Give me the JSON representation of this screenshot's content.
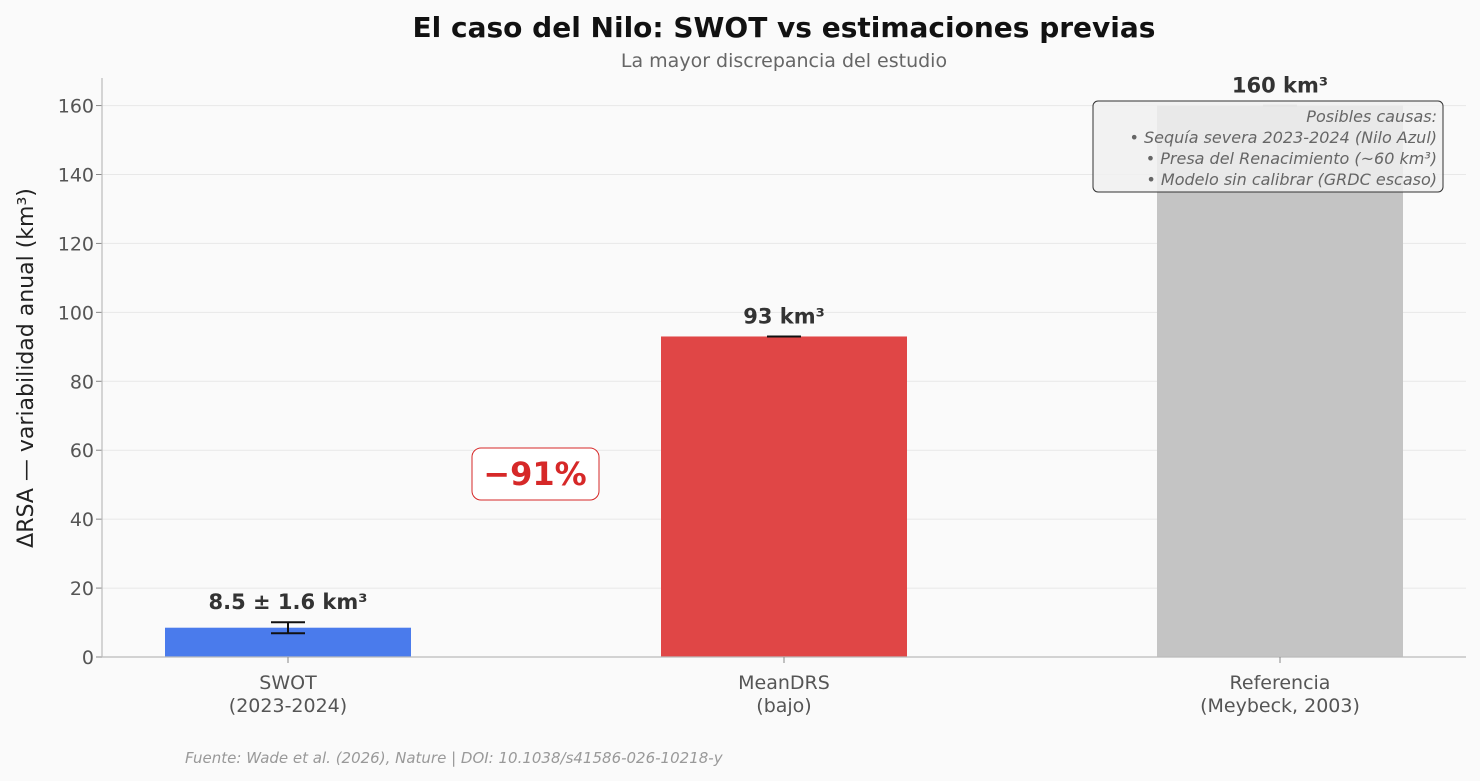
{
  "chart_data": {
    "type": "bar",
    "title": "El caso del Nilo: SWOT vs estimaciones previas",
    "subtitle": "La mayor discrepancia del estudio",
    "ylabel": "ΔRSA — variabilidad anual (km³)",
    "xlabel": "",
    "ylim": [
      0,
      168
    ],
    "yticks": [
      0,
      20,
      40,
      60,
      80,
      100,
      120,
      140,
      160
    ],
    "grid": true,
    "categories": [
      [
        "SWOT",
        "(2023-2024)"
      ],
      [
        "MeanDRS",
        "(bajo)"
      ],
      [
        "Referencia",
        "(Meybeck, 2003)"
      ]
    ],
    "values": [
      8.5,
      93,
      160
    ],
    "errors": [
      1.6,
      0,
      0
    ],
    "colors": [
      "#4a7bec",
      "#e04646",
      "#c4c4c4"
    ],
    "value_labels": [
      "8.5 ± 1.6 km³",
      "93 km³",
      "160 km³"
    ],
    "annotation_delta": "−91%",
    "notes": [
      "Posibles causas:",
      "• Sequía severa 2023-2024 (Nilo Azul)",
      "• Presa del Renacimiento (~60 km³)",
      "• Modelo sin calibrar (GRDC escaso)"
    ],
    "source": "Fuente: Wade et al. (2026), Nature | DOI: 10.1038/s41586-026-10218-y"
  }
}
